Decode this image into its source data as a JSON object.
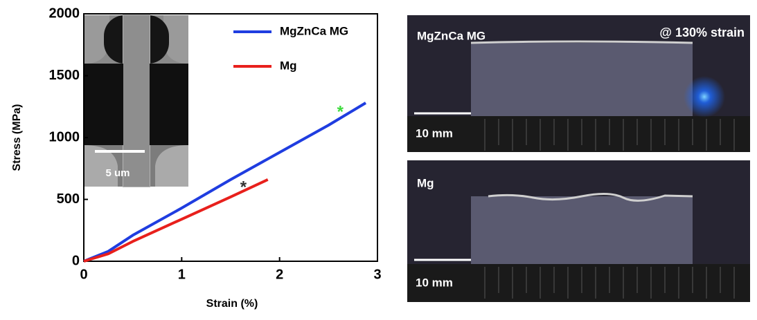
{
  "chart_data": {
    "type": "line",
    "x_label": "Strain (%)",
    "y_label": "Stress (MPa)",
    "xlim": [
      0,
      3
    ],
    "xticks": [
      0,
      1,
      2,
      3
    ],
    "ylim": [
      0,
      2000
    ],
    "yticks": [
      0,
      500,
      1000,
      1500,
      2000
    ],
    "grid": false,
    "legend": "upper right",
    "series": [
      {
        "name": "MgZnCa MG",
        "color": "#1f3de0",
        "x": [
          0,
          0.25,
          0.5,
          1,
          1.5,
          2,
          2.5,
          2.88
        ],
        "values": [
          0,
          80,
          210,
          430,
          660,
          880,
          1100,
          1280
        ]
      },
      {
        "name": "Mg",
        "color": "#e8201c",
        "x": [
          0,
          0.25,
          0.5,
          1,
          1.5,
          1.88
        ],
        "values": [
          0,
          60,
          160,
          340,
          520,
          660
        ]
      }
    ],
    "annotations": [
      {
        "text": "*",
        "color": "#3ddc3d",
        "x": 2.62,
        "y": 1235
      },
      {
        "text": "*",
        "color": "#333333",
        "x": 1.63,
        "y": 625
      }
    ],
    "inset_scale_label": "5 um"
  },
  "photos": [
    {
      "label": "MgZnCa MG",
      "annotation": "@ 130% strain",
      "scale_label": "10 mm"
    },
    {
      "label": "Mg",
      "scale_label": "10 mm"
    }
  ]
}
